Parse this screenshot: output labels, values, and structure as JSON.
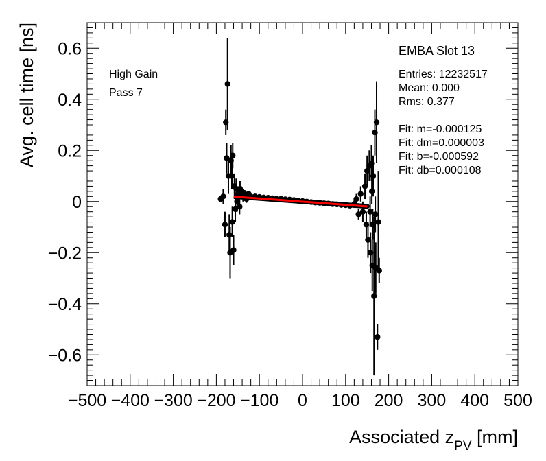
{
  "chart_data": {
    "type": "scatter",
    "xlim": [
      -500,
      500
    ],
    "ylim": [
      -0.72,
      0.7
    ],
    "xticks": [
      -500,
      -400,
      -300,
      -200,
      -100,
      0,
      100,
      200,
      300,
      400,
      500
    ],
    "xtick_labels": [
      "−500",
      "−400",
      "−300",
      "−200",
      "−100",
      "0",
      "100",
      "200",
      "300",
      "400",
      "500"
    ],
    "yticks": [
      -0.6,
      -0.4,
      -0.2,
      0,
      0.2,
      0.4,
      0.6
    ],
    "ytick_labels": [
      "−0.6",
      "−0.4",
      "−0.2",
      "0",
      "0.2",
      "0.4",
      "0.6"
    ],
    "xlabel_main": "Associated z",
    "xlabel_sub": "PV",
    "xlabel_unit": " [mm]",
    "ylabel": "Avg. cell time [ns]",
    "legend": {
      "line1": "High Gain",
      "line2": "Pass 7"
    },
    "stats": {
      "title": "EMBA Slot 13",
      "lines": [
        "Entries: 12232517",
        "Mean: 0.000",
        "Rms: 0.377",
        "",
        "Fit: m=-0.000125",
        "Fit: dm=0.000003",
        "Fit: b=-0.000592",
        "Fit: db=0.000108"
      ]
    },
    "fit": {
      "m": -0.000125,
      "b": -0.000592,
      "x_range": [
        -160,
        150
      ],
      "color": "#ff0000"
    },
    "points": [
      [
        -190,
        0.01,
        0.01
      ],
      [
        -178,
        0.31,
        0.05
      ],
      [
        -176,
        0.17,
        0.06
      ],
      [
        -174,
        0.46,
        0.18
      ],
      [
        -172,
        0.1,
        0.07
      ],
      [
        -170,
        -0.13,
        0.08
      ],
      [
        -168,
        -0.2,
        0.1
      ],
      [
        -166,
        0.16,
        0.06
      ],
      [
        -164,
        0.1,
        0.05
      ],
      [
        -162,
        0.18,
        0.05
      ],
      [
        -160,
        -0.19,
        0.06
      ],
      [
        -158,
        0.06,
        0.05
      ],
      [
        -156,
        -0.03,
        0.05
      ],
      [
        -154,
        0.05,
        0.04
      ],
      [
        -180,
        -0.09,
        0.05
      ],
      [
        -150,
        0.03,
        0.03
      ],
      [
        -146,
        -0.02,
        0.03
      ],
      [
        -142,
        0.04,
        0.02
      ],
      [
        -138,
        0.02,
        0.02
      ],
      [
        -134,
        0.03,
        0.015
      ],
      [
        -130,
        0.01,
        0.015
      ],
      [
        -125,
        0.03,
        0.01
      ],
      [
        -120,
        0.02,
        0.01
      ],
      [
        -110,
        0.02,
        0.008
      ],
      [
        -100,
        0.018,
        0.006
      ],
      [
        -90,
        0.016,
        0.005
      ],
      [
        -80,
        0.015,
        0.005
      ],
      [
        -70,
        0.013,
        0.004
      ],
      [
        -60,
        0.012,
        0.004
      ],
      [
        -50,
        0.011,
        0.004
      ],
      [
        -40,
        0.009,
        0.004
      ],
      [
        -30,
        0.008,
        0.004
      ],
      [
        -20,
        0.006,
        0.004
      ],
      [
        -10,
        0.004,
        0.004
      ],
      [
        0,
        0.002,
        0.004
      ],
      [
        10,
        0.0,
        0.004
      ],
      [
        20,
        -0.002,
        0.004
      ],
      [
        30,
        -0.004,
        0.004
      ],
      [
        40,
        -0.005,
        0.004
      ],
      [
        50,
        -0.007,
        0.004
      ],
      [
        60,
        -0.008,
        0.004
      ],
      [
        70,
        -0.01,
        0.005
      ],
      [
        80,
        -0.011,
        0.005
      ],
      [
        90,
        -0.013,
        0.006
      ],
      [
        100,
        -0.014,
        0.008
      ],
      [
        110,
        -0.016,
        0.01
      ],
      [
        120,
        -0.01,
        0.015
      ],
      [
        125,
        0.01,
        0.02
      ],
      [
        130,
        -0.05,
        0.02
      ],
      [
        135,
        0.03,
        0.03
      ],
      [
        140,
        -0.04,
        0.04
      ],
      [
        145,
        0.06,
        0.05
      ],
      [
        148,
        -0.09,
        0.05
      ],
      [
        150,
        0.12,
        0.06
      ],
      [
        152,
        -0.15,
        0.07
      ],
      [
        155,
        0.14,
        0.06
      ],
      [
        158,
        -0.2,
        0.08
      ],
      [
        160,
        0.15,
        0.07
      ],
      [
        162,
        -0.25,
        0.1
      ],
      [
        164,
        0.1,
        0.08
      ],
      [
        166,
        -0.37,
        0.31
      ],
      [
        168,
        0.27,
        0.09
      ],
      [
        170,
        -0.26,
        0.1
      ],
      [
        172,
        0.31,
        0.16
      ],
      [
        174,
        -0.53,
        0.05
      ],
      [
        176,
        -0.08,
        0.2
      ],
      [
        178,
        -0.27,
        0.05
      ],
      [
        157,
        -0.04,
        0.06
      ],
      [
        161,
        0.04,
        0.05
      ],
      [
        163,
        -0.09,
        0.06
      ],
      [
        169,
        -0.05,
        0.07
      ],
      [
        -184,
        0.02,
        0.03
      ],
      [
        -163,
        -0.08,
        0.06
      ],
      [
        -152,
        0.0,
        0.04
      ],
      [
        -145,
        0.05,
        0.03
      ]
    ]
  }
}
